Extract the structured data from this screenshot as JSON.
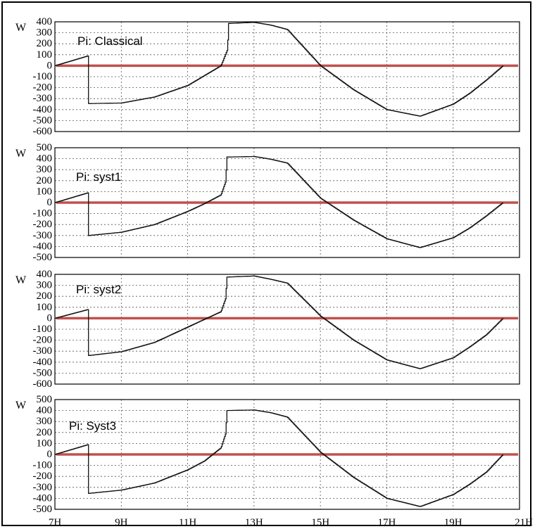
{
  "chart_data": [
    {
      "type": "line",
      "title": "Pi: Classical",
      "ylabel": "W",
      "ylim": [
        -600,
        400
      ],
      "xlim": [
        7,
        21
      ],
      "yticks": [
        "400",
        "300",
        "200",
        "100",
        "0",
        "-100",
        "-200",
        "-300",
        "-400",
        "-500",
        "-600"
      ],
      "grid": true,
      "x": [
        7,
        7.5,
        8,
        8.01,
        9,
        10,
        11,
        11.5,
        12,
        12.2,
        12.22,
        13,
        13.5,
        14,
        15,
        16,
        17,
        18,
        19,
        19.5,
        20,
        20.5
      ],
      "y": [
        0,
        45,
        90,
        -345,
        -340,
        -285,
        -180,
        -90,
        0,
        150,
        385,
        395,
        370,
        330,
        0,
        -220,
        -400,
        -460,
        -350,
        -250,
        -130,
        0
      ],
      "reference_line": {
        "y": 0,
        "color": "#c0504d"
      }
    },
    {
      "type": "line",
      "title": "Pi: syst1",
      "ylabel": "W",
      "ylim": [
        -500,
        500
      ],
      "xlim": [
        7,
        21
      ],
      "yticks": [
        "500",
        "400",
        "300",
        "200",
        "100",
        "0",
        "-100",
        "-200",
        "-300",
        "-400",
        "-500"
      ],
      "grid": true,
      "x": [
        7,
        7.5,
        8,
        8.01,
        9,
        10,
        11,
        11.5,
        12,
        12.15,
        12.17,
        13,
        13.5,
        14,
        15,
        16,
        17,
        18,
        19,
        19.5,
        20,
        20.5
      ],
      "y": [
        0,
        45,
        90,
        -300,
        -270,
        -200,
        -80,
        -10,
        70,
        200,
        415,
        420,
        395,
        360,
        40,
        -160,
        -330,
        -410,
        -320,
        -230,
        -120,
        0
      ],
      "reference_line": {
        "y": 0,
        "color": "#c0504d"
      }
    },
    {
      "type": "line",
      "title": "Pi: syst2",
      "ylabel": "W",
      "ylim": [
        -600,
        400
      ],
      "xlim": [
        7,
        21
      ],
      "yticks": [
        "400",
        "300",
        "200",
        "100",
        "0",
        "-100",
        "-200",
        "-300",
        "-400",
        "-500",
        "-600"
      ],
      "grid": true,
      "x": [
        7,
        7.5,
        8,
        8.01,
        9,
        10,
        11,
        11.5,
        12,
        12.15,
        12.17,
        13,
        13.5,
        14,
        15,
        16,
        17,
        18,
        19,
        19.5,
        20,
        20.5
      ],
      "y": [
        0,
        40,
        80,
        -340,
        -305,
        -220,
        -80,
        -10,
        60,
        190,
        375,
        385,
        355,
        320,
        20,
        -200,
        -380,
        -460,
        -360,
        -260,
        -150,
        0
      ],
      "reference_line": {
        "y": 0,
        "color": "#c0504d"
      }
    },
    {
      "type": "line",
      "title": "Pi: Syst3",
      "ylabel": "W",
      "ylim": [
        -500,
        500
      ],
      "xlim": [
        7,
        21
      ],
      "yticks": [
        "500",
        "400",
        "300",
        "200",
        "100",
        "0",
        "-100",
        "-200",
        "-300",
        "-400",
        "-500"
      ],
      "grid": true,
      "x": [
        7,
        7.5,
        8,
        8.01,
        9,
        10,
        11,
        11.5,
        12,
        12.15,
        12.17,
        13,
        13.5,
        14,
        15,
        16,
        17,
        18,
        19,
        19.5,
        20,
        20.5
      ],
      "y": [
        0,
        45,
        90,
        -355,
        -325,
        -260,
        -140,
        -60,
        60,
        200,
        400,
        405,
        380,
        340,
        20,
        -210,
        -400,
        -475,
        -365,
        -270,
        -160,
        0
      ],
      "reference_line": {
        "y": 0,
        "color": "#c0504d"
      }
    }
  ],
  "x_ticks": [
    "7H",
    "9H",
    "11H",
    "13H",
    "15H",
    "17H",
    "19H",
    "21H"
  ],
  "x_tick_values": [
    7,
    9,
    11,
    13,
    15,
    17,
    19,
    21
  ]
}
